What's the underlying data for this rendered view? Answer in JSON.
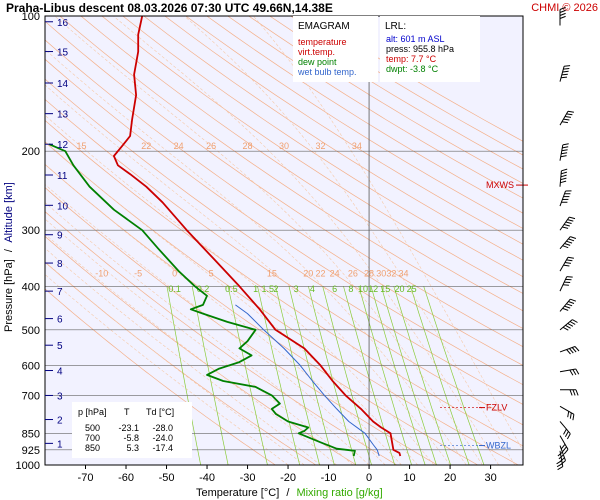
{
  "header": {
    "title": "Praha-Libus   descent   08.03.2026 07:30 UTC  49.66N,14.38E",
    "copyright": "CHMI © 2026"
  },
  "legend": {
    "heading": "EMAGRAM",
    "items": [
      {
        "label": "temperature",
        "color": "#cc0000"
      },
      {
        "label": "virt.temp.",
        "color": "#cc0000"
      },
      {
        "label": "dew point",
        "color": "#008000"
      },
      {
        "label": "wet bulb temp.",
        "color": "#3366cc"
      }
    ]
  },
  "lrl": {
    "heading": "LRL:",
    "alt": "alt: 601 m ASL",
    "press": "press: 955.8 hPa",
    "temp": "temp: 7.7 °C",
    "dwpt": "dwpt: -3.8 °C"
  },
  "levels_table": {
    "headers": [
      "p [hPa]",
      "T",
      "Td [°C]"
    ],
    "rows": [
      [
        "500",
        "-23.1",
        "-28.0"
      ],
      [
        "700",
        "-5.8",
        "-24.0"
      ],
      [
        "850",
        "5.3",
        "-17.4"
      ]
    ]
  },
  "markers": {
    "mxws": "MXWS",
    "fzlv": "FZLV",
    "wbzl": "WBZL"
  },
  "chart_data": {
    "type": "line",
    "xlabel": "Temperature [°C]",
    "xlabel_sep": "/",
    "xlabel2": "Mixing ratio [g/kg]",
    "ylabel": "Pressure [hPa]",
    "ylabel_sep": "/",
    "ylabel2": "Altitude [km]",
    "xlim": [
      -80,
      38
    ],
    "ylim": [
      1000,
      100
    ],
    "y_scale": "log",
    "x_ticks": [
      -70,
      -60,
      -50,
      -40,
      -30,
      -20,
      -10,
      0,
      10,
      20,
      30
    ],
    "x_tick_labels": [
      "-70",
      "-60",
      "-50",
      "-40",
      "-30",
      "-20",
      "-10",
      "0",
      "10",
      "20",
      "30"
    ],
    "y_ticks": [
      100,
      200,
      300,
      400,
      500,
      600,
      700,
      850,
      925,
      1000
    ],
    "y_tick_labels": [
      "100",
      "200",
      "300",
      "400",
      "500",
      "600",
      "700",
      "850",
      "925",
      "1000"
    ],
    "altitude_ticks": [
      {
        "km": 1,
        "p": 895
      },
      {
        "km": 2,
        "p": 792
      },
      {
        "km": 3,
        "p": 700
      },
      {
        "km": 4,
        "p": 616
      },
      {
        "km": 5,
        "p": 541
      },
      {
        "km": 6,
        "p": 472
      },
      {
        "km": 7,
        "p": 410
      },
      {
        "km": 8,
        "p": 355
      },
      {
        "km": 9,
        "p": 307
      },
      {
        "km": 10,
        "p": 264
      },
      {
        "km": 11,
        "p": 226
      },
      {
        "km": 12,
        "p": 193
      },
      {
        "km": 13,
        "p": 165
      },
      {
        "km": 14,
        "p": 141
      },
      {
        "km": 15,
        "p": 120
      },
      {
        "km": 16,
        "p": 103
      }
    ],
    "grid": true,
    "dry_adiabat_labels": [
      {
        "label": "15",
        "x": -71,
        "p": 198
      },
      {
        "label": "22",
        "x": -55,
        "p": 198
      },
      {
        "label": "24",
        "x": -47,
        "p": 198
      },
      {
        "label": "26",
        "x": -39,
        "p": 198
      },
      {
        "label": "28",
        "x": -30,
        "p": 198
      },
      {
        "label": "30",
        "x": -21,
        "p": 198
      },
      {
        "label": "32",
        "x": -12,
        "p": 198
      },
      {
        "label": "34",
        "x": -3,
        "p": 198
      }
    ],
    "moist_adiabat_labels": [
      {
        "label": "-10",
        "x": -66,
        "p": 380
      },
      {
        "label": "-5",
        "x": -57,
        "p": 380
      },
      {
        "label": "0",
        "x": -48,
        "p": 380
      },
      {
        "label": "5",
        "x": -39,
        "p": 380
      },
      {
        "label": "15",
        "x": -24,
        "p": 380
      },
      {
        "label": "20",
        "x": -15,
        "p": 380
      },
      {
        "label": "22",
        "x": -12,
        "p": 380
      },
      {
        "label": "24",
        "x": -8.5,
        "p": 380
      },
      {
        "label": "26",
        "x": -4,
        "p": 380
      },
      {
        "label": "28",
        "x": 0,
        "p": 380
      },
      {
        "label": "30",
        "x": 3,
        "p": 380
      },
      {
        "label": "32",
        "x": 5.5,
        "p": 380
      },
      {
        "label": "34",
        "x": 8.5,
        "p": 380
      }
    ],
    "mixing_ratio_labels": [
      {
        "label": "0.1",
        "x": -48,
        "p": 412
      },
      {
        "label": "0.2",
        "x": -41,
        "p": 412
      },
      {
        "label": "0.5",
        "x": -34,
        "p": 412
      },
      {
        "label": "1",
        "x": -28,
        "p": 412
      },
      {
        "label": "1.5",
        "x": -25,
        "p": 412
      },
      {
        "label": "2",
        "x": -23,
        "p": 412
      },
      {
        "label": "3",
        "x": -18,
        "p": 412
      },
      {
        "label": "4",
        "x": -14,
        "p": 412
      },
      {
        "label": "6",
        "x": -8.5,
        "p": 412
      },
      {
        "label": "8",
        "x": -4.5,
        "p": 412
      },
      {
        "label": "10",
        "x": -1.5,
        "p": 412
      },
      {
        "label": "12",
        "x": 1,
        "p": 412
      },
      {
        "label": "15",
        "x": 4,
        "p": 412
      },
      {
        "label": "20",
        "x": 7.5,
        "p": 412
      },
      {
        "label": "25",
        "x": 10.5,
        "p": 412
      }
    ],
    "series": [
      {
        "name": "temperature",
        "color": "#cc0000",
        "points": [
          [
            7.7,
            955
          ],
          [
            7.5,
            940
          ],
          [
            6,
            925
          ],
          [
            5.3,
            850
          ],
          [
            3,
            825
          ],
          [
            1,
            800
          ],
          [
            -2,
            750
          ],
          [
            -5.8,
            700
          ],
          [
            -9,
            650
          ],
          [
            -12,
            600
          ],
          [
            -16,
            550
          ],
          [
            -23.1,
            500
          ],
          [
            -27,
            450
          ],
          [
            -32,
            400
          ],
          [
            -38,
            350
          ],
          [
            -45,
            300
          ],
          [
            -51,
            260
          ],
          [
            -55,
            240
          ],
          [
            -59,
            225
          ],
          [
            -62,
            215
          ],
          [
            -63,
            205
          ],
          [
            -61,
            195
          ],
          [
            -59,
            185
          ],
          [
            -58.5,
            170
          ],
          [
            -57.5,
            150
          ],
          [
            -58,
            135
          ],
          [
            -57,
            120
          ],
          [
            -57,
            110
          ],
          [
            -56,
            100
          ]
        ]
      },
      {
        "name": "dew point",
        "color": "#008000",
        "points": [
          [
            -3.8,
            955
          ],
          [
            -3.5,
            930
          ],
          [
            -8,
            920
          ],
          [
            -12,
            890
          ],
          [
            -17.4,
            850
          ],
          [
            -16,
            840
          ],
          [
            -15,
            825
          ],
          [
            -20,
            800
          ],
          [
            -23,
            770
          ],
          [
            -24,
            750
          ],
          [
            -22,
            730
          ],
          [
            -24,
            700
          ],
          [
            -28,
            670
          ],
          [
            -36,
            650
          ],
          [
            -40,
            630
          ],
          [
            -37,
            610
          ],
          [
            -32,
            590
          ],
          [
            -29,
            570
          ],
          [
            -32,
            550
          ],
          [
            -30,
            530
          ],
          [
            -28,
            500
          ],
          [
            -35,
            480
          ],
          [
            -41,
            460
          ],
          [
            -44,
            450
          ],
          [
            -41,
            440
          ],
          [
            -40,
            420
          ],
          [
            -43,
            400
          ],
          [
            -47,
            370
          ],
          [
            -52,
            330
          ],
          [
            -56,
            300
          ],
          [
            -63,
            270
          ],
          [
            -69,
            240
          ],
          [
            -73,
            215
          ],
          [
            -75,
            200
          ],
          [
            -79,
            193
          ]
        ]
      },
      {
        "name": "wet bulb temp.",
        "color": "#3366cc",
        "points": [
          [
            2.5,
            955
          ],
          [
            2,
            925
          ],
          [
            1,
            900
          ],
          [
            -1,
            850
          ],
          [
            -5,
            800
          ],
          [
            -8,
            750
          ],
          [
            -11,
            700
          ],
          [
            -14,
            650
          ],
          [
            -17,
            600
          ],
          [
            -21,
            550
          ],
          [
            -26,
            500
          ],
          [
            -30,
            460
          ],
          [
            -33,
            440
          ]
        ]
      }
    ],
    "reference_lines": [
      {
        "name": "FZLV",
        "p": 745,
        "color": "#cc0000"
      },
      {
        "name": "WBZL",
        "p": 905,
        "color": "#3366cc"
      },
      {
        "name": "MXWS",
        "p": 238,
        "color": "#cc0000"
      }
    ]
  }
}
